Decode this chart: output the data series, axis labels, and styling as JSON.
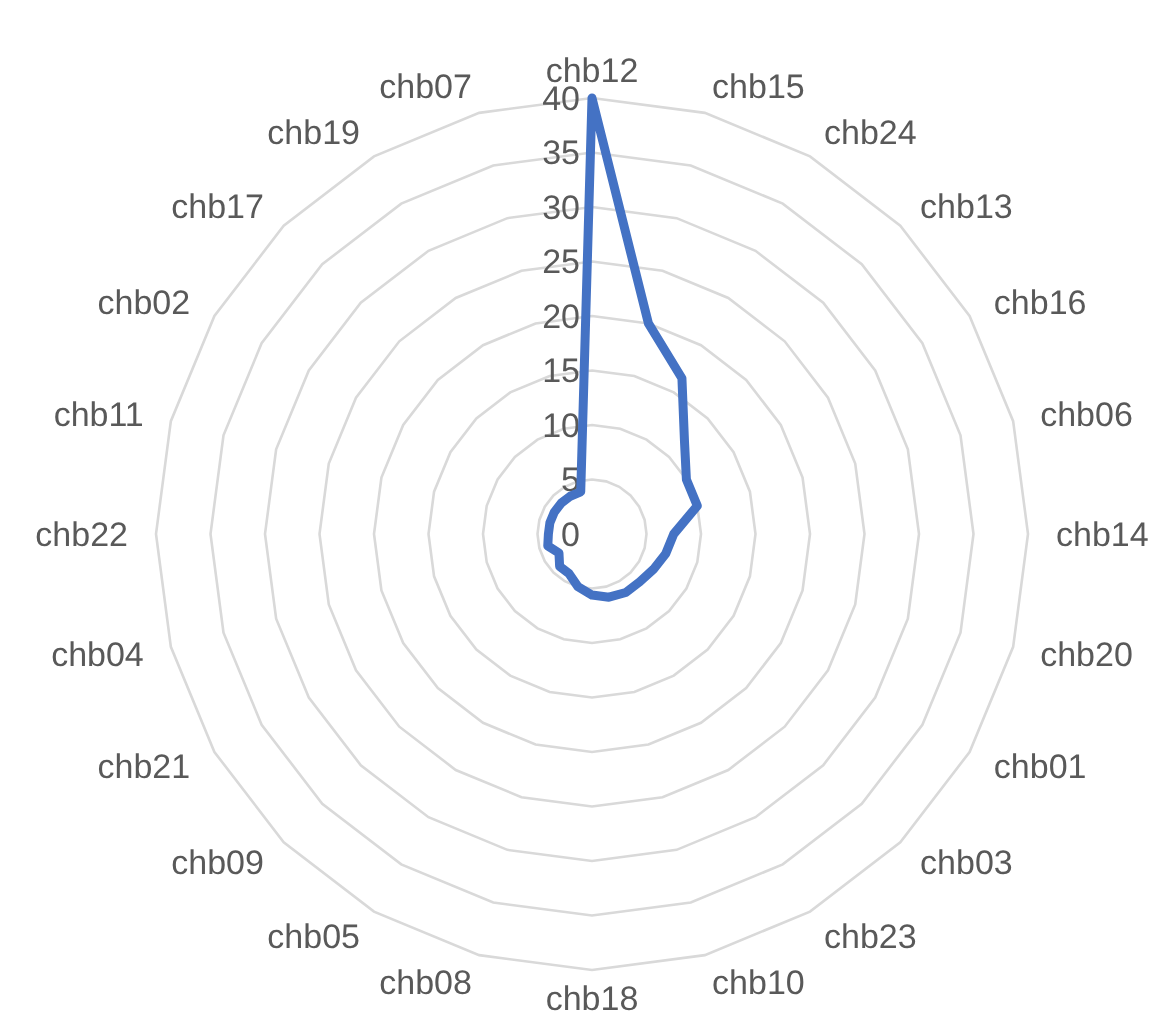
{
  "chart_data": {
    "type": "radar",
    "categories": [
      "chb12",
      "chb15",
      "chb24",
      "chb13",
      "chb16",
      "chb06",
      "chb14",
      "chb20",
      "chb01",
      "chb03",
      "chb23",
      "chb10",
      "chb18",
      "chb08",
      "chb05",
      "chb09",
      "chb21",
      "chb04",
      "chb22",
      "chb11",
      "chb02",
      "chb17",
      "chb19",
      "chb07"
    ],
    "series": [
      {
        "color": "#4472c4",
        "values": [
          40,
          20,
          16.5,
          12,
          10,
          10,
          7.5,
          7,
          6.5,
          6.2,
          6.2,
          6,
          5.6,
          5,
          4.2,
          4.2,
          3.5,
          4.2,
          4,
          4,
          4,
          4,
          4,
          4
        ]
      }
    ],
    "ylim": [
      0,
      40
    ],
    "yticks": [
      0,
      5,
      10,
      15,
      20,
      25,
      30,
      35,
      40
    ],
    "grid": true,
    "marker": "none"
  }
}
